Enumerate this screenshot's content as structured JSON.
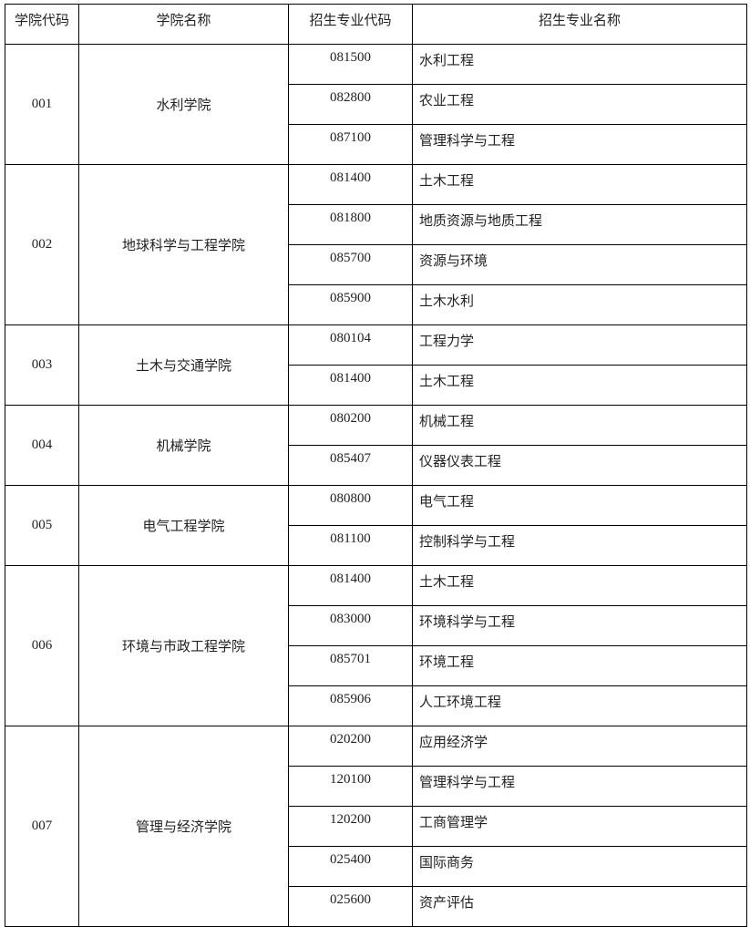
{
  "headers": [
    "学院代码",
    "学院名称",
    "招生专业代码",
    "招生专业名称"
  ],
  "colleges": [
    {
      "code": "001",
      "name": "水利学院",
      "majors": [
        {
          "code": "081500",
          "name": "水利工程"
        },
        {
          "code": "082800",
          "name": "农业工程"
        },
        {
          "code": "087100",
          "name": "管理科学与工程"
        }
      ]
    },
    {
      "code": "002",
      "name": "地球科学与工程学院",
      "majors": [
        {
          "code": "081400",
          "name": "土木工程"
        },
        {
          "code": "081800",
          "name": "地质资源与地质工程"
        },
        {
          "code": "085700",
          "name": "资源与环境"
        },
        {
          "code": "085900",
          "name": "土木水利"
        }
      ]
    },
    {
      "code": "003",
      "name": "土木与交通学院",
      "majors": [
        {
          "code": "080104",
          "name": "工程力学"
        },
        {
          "code": "081400",
          "name": "土木工程"
        }
      ]
    },
    {
      "code": "004",
      "name": "机械学院",
      "majors": [
        {
          "code": "080200",
          "name": "机械工程"
        },
        {
          "code": "085407",
          "name": "仪器仪表工程"
        }
      ]
    },
    {
      "code": "005",
      "name": "电气工程学院",
      "majors": [
        {
          "code": "080800",
          "name": "电气工程"
        },
        {
          "code": "081100",
          "name": "控制科学与工程"
        }
      ]
    },
    {
      "code": "006",
      "name": "环境与市政工程学院",
      "majors": [
        {
          "code": "081400",
          "name": "土木工程"
        },
        {
          "code": "083000",
          "name": "环境科学与工程"
        },
        {
          "code": "085701",
          "name": "环境工程"
        },
        {
          "code": "085906",
          "name": "人工环境工程"
        }
      ]
    },
    {
      "code": "007",
      "name": "管理与经济学院",
      "majors": [
        {
          "code": "020200",
          "name": "应用经济学"
        },
        {
          "code": "120100",
          "name": "管理科学与工程"
        },
        {
          "code": "120200",
          "name": "工商管理学"
        },
        {
          "code": "025400",
          "name": "国际商务"
        },
        {
          "code": "025600",
          "name": "资产评估"
        }
      ]
    }
  ]
}
